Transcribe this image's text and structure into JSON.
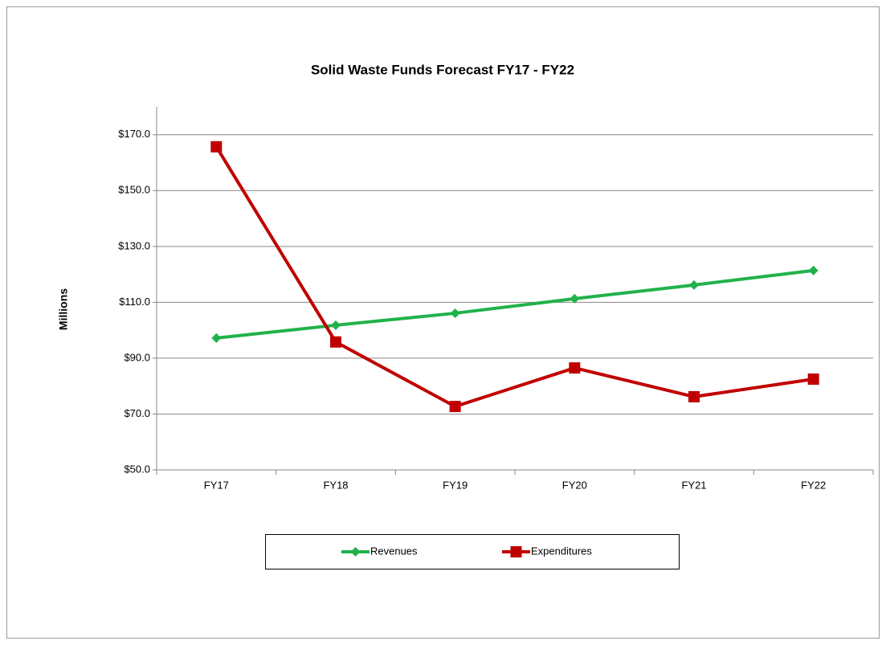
{
  "chart_data": {
    "type": "line",
    "title": "Solid Waste Funds Forecast FY17 - FY22",
    "y_label": "Millions",
    "categories": [
      "FY17",
      "FY18",
      "FY19",
      "FY20",
      "FY21",
      "FY22"
    ],
    "series": [
      {
        "name": "Revenues",
        "color": "#21b24b",
        "marker": "diamond",
        "values": [
          97.2,
          101.8,
          106.1,
          111.3,
          116.2,
          121.4
        ]
      },
      {
        "name": "Expenditures",
        "color": "#c00000",
        "marker": "square",
        "values": [
          165.7,
          95.8,
          72.7,
          86.5,
          76.2,
          82.5
        ]
      }
    ],
    "ylim": [
      50,
      180
    ],
    "yticks": [
      {
        "value": 50,
        "label": "$50.0"
      },
      {
        "value": 70,
        "label": "$70.0"
      },
      {
        "value": 90,
        "label": "$90.0"
      },
      {
        "value": 110,
        "label": "$110.0"
      },
      {
        "value": 130,
        "label": "$130.0"
      },
      {
        "value": 150,
        "label": "$150.0"
      },
      {
        "value": 170,
        "label": "$170.0"
      }
    ],
    "grid": true,
    "legend": "bottom"
  }
}
